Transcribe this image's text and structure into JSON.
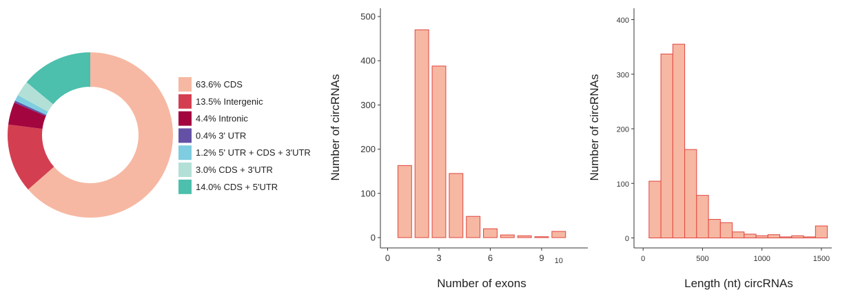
{
  "chart_data": [
    {
      "type": "pie",
      "subtype": "donut",
      "legend_position": "right",
      "slices": [
        {
          "label": "63.6% CDS",
          "value": 63.6,
          "color": "#f6b8a2"
        },
        {
          "label": "13.5% Intergenic",
          "value": 13.5,
          "color": "#d33f51"
        },
        {
          "label": "4.4% Intronic",
          "value": 4.4,
          "color": "#a3053f"
        },
        {
          "label": "0.4% 3' UTR",
          "value": 0.4,
          "color": "#6451a6"
        },
        {
          "label": "1.2% 5' UTR + CDS + 3'UTR",
          "value": 1.2,
          "color": "#7ecde0"
        },
        {
          "label": "3.0% CDS + 3'UTR",
          "value": 3.0,
          "color": "#b3e0d6"
        },
        {
          "label": "14.0% CDS + 5'UTR",
          "value": 14.0,
          "color": "#4cbfad"
        }
      ]
    },
    {
      "type": "bar",
      "subtype": "histogram",
      "xlabel": "Number of exons",
      "ylabel": "Number of circRNAs",
      "xlim": [
        -0.5,
        10.5
      ],
      "ylim": [
        0,
        500
      ],
      "xticks": [
        0,
        3,
        6,
        9
      ],
      "xtick_labels": [
        "0",
        "3",
        "6",
        "9"
      ],
      "extra_xtick_label": "10",
      "yticks": [
        0,
        100,
        200,
        300,
        400,
        500
      ],
      "categories": [
        1,
        2,
        3,
        4,
        5,
        6,
        7,
        8,
        9,
        10
      ],
      "values": [
        163,
        470,
        388,
        145,
        48,
        20,
        6,
        4,
        2,
        14
      ],
      "bar_fill": "#f6b8a2",
      "bar_stroke": "#e0443f",
      "grid": false
    },
    {
      "type": "bar",
      "subtype": "histogram",
      "xlabel": "Length (nt) circRNAs",
      "ylabel": "Number of circRNAs",
      "xlim": [
        0,
        1600
      ],
      "ylim": [
        0,
        400
      ],
      "xticks": [
        0,
        500,
        1000,
        1500
      ],
      "yticks": [
        0,
        100,
        200,
        300,
        400
      ],
      "bins": [
        {
          "x0": 50,
          "x1": 150,
          "value": 104
        },
        {
          "x0": 150,
          "x1": 250,
          "value": 337
        },
        {
          "x0": 250,
          "x1": 350,
          "value": 355
        },
        {
          "x0": 350,
          "x1": 450,
          "value": 162
        },
        {
          "x0": 450,
          "x1": 550,
          "value": 78
        },
        {
          "x0": 550,
          "x1": 650,
          "value": 34
        },
        {
          "x0": 650,
          "x1": 750,
          "value": 28
        },
        {
          "x0": 750,
          "x1": 850,
          "value": 11
        },
        {
          "x0": 850,
          "x1": 950,
          "value": 7
        },
        {
          "x0": 950,
          "x1": 1050,
          "value": 4
        },
        {
          "x0": 1050,
          "x1": 1150,
          "value": 6
        },
        {
          "x0": 1150,
          "x1": 1250,
          "value": 2
        },
        {
          "x0": 1250,
          "x1": 1350,
          "value": 4
        },
        {
          "x0": 1350,
          "x1": 1450,
          "value": 2
        },
        {
          "x0": 1450,
          "x1": 1550,
          "value": 22
        }
      ],
      "bar_fill": "#f6b8a2",
      "bar_stroke": "#e0443f",
      "grid": false
    }
  ]
}
